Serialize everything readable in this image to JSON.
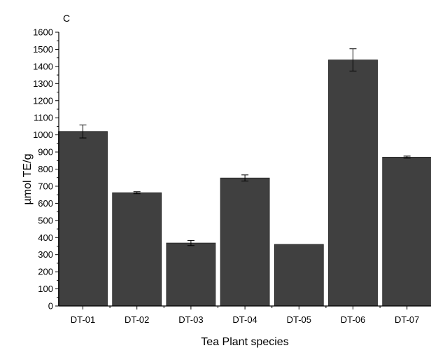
{
  "chart_data": {
    "type": "bar",
    "panel_label": "C",
    "categories": [
      "DT-01",
      "DT-02",
      "DT-03",
      "DT-04",
      "DT-05",
      "DT-06",
      "DT-07"
    ],
    "values": [
      1020,
      662,
      368,
      748,
      360,
      1438,
      870
    ],
    "errors": [
      38,
      6,
      15,
      18,
      0,
      65,
      6
    ],
    "xlabel": "Tea Plant species",
    "ylabel": "µmol TE/g",
    "ylim": [
      0,
      1600
    ],
    "yticks": [
      0,
      100,
      200,
      300,
      400,
      500,
      600,
      700,
      800,
      900,
      1000,
      1100,
      1200,
      1300,
      1400,
      1500,
      1600
    ],
    "grid": false,
    "legend": "none",
    "colors": {
      "bar": "#404040",
      "axis": "#000000",
      "error_bar": "#000000"
    }
  }
}
